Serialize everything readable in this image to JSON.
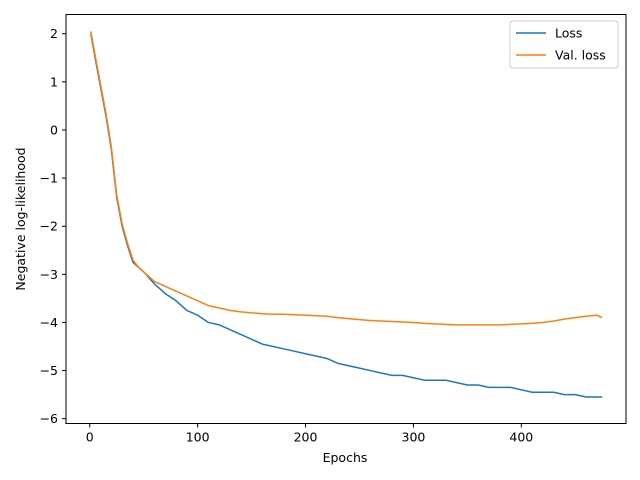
{
  "chart_data": {
    "type": "line",
    "title": "",
    "xlabel": "Epochs",
    "ylabel": "Negative log-likelihood",
    "xlim": [
      -22,
      497
    ],
    "ylim": [
      -6.1,
      2.4
    ],
    "xticks": [
      0,
      100,
      200,
      300,
      400
    ],
    "yticks": [
      2,
      1,
      0,
      -1,
      -2,
      -3,
      -4,
      -5,
      -6
    ],
    "xtick_labels": [
      "0",
      "100",
      "200",
      "300",
      "400"
    ],
    "ytick_labels": [
      "2",
      "1",
      "0",
      "−1",
      "−2",
      "−3",
      "−4",
      "−5",
      "−6"
    ],
    "grid": false,
    "legend_position": "top-right",
    "series": [
      {
        "name": "Loss",
        "color": "#1f77b4",
        "x": [
          1,
          5,
          10,
          15,
          20,
          25,
          30,
          35,
          40,
          45,
          50,
          60,
          70,
          80,
          90,
          100,
          110,
          120,
          130,
          140,
          150,
          160,
          170,
          180,
          190,
          200,
          210,
          220,
          230,
          240,
          250,
          260,
          270,
          280,
          290,
          300,
          310,
          320,
          330,
          340,
          350,
          360,
          370,
          380,
          390,
          400,
          410,
          420,
          430,
          440,
          450,
          460,
          470,
          475
        ],
        "y": [
          2.0,
          1.5,
          0.9,
          0.3,
          -0.4,
          -1.4,
          -2.0,
          -2.4,
          -2.75,
          -2.85,
          -2.95,
          -3.2,
          -3.4,
          -3.55,
          -3.75,
          -3.85,
          -4.0,
          -4.05,
          -4.15,
          -4.25,
          -4.35,
          -4.45,
          -4.5,
          -4.55,
          -4.6,
          -4.65,
          -4.7,
          -4.75,
          -4.85,
          -4.9,
          -4.95,
          -5.0,
          -5.05,
          -5.1,
          -5.1,
          -5.15,
          -5.2,
          -5.2,
          -5.2,
          -5.25,
          -5.3,
          -5.3,
          -5.35,
          -5.35,
          -5.35,
          -5.4,
          -5.45,
          -5.45,
          -5.45,
          -5.5,
          -5.5,
          -5.55,
          -5.55,
          -5.55
        ]
      },
      {
        "name": "Val. loss",
        "color": "#ff7f0e",
        "x": [
          1,
          5,
          10,
          15,
          20,
          25,
          30,
          35,
          40,
          45,
          50,
          60,
          70,
          80,
          90,
          100,
          110,
          120,
          130,
          140,
          150,
          160,
          170,
          180,
          190,
          200,
          210,
          220,
          230,
          240,
          250,
          260,
          270,
          280,
          290,
          300,
          310,
          320,
          330,
          340,
          350,
          360,
          370,
          380,
          390,
          400,
          410,
          420,
          430,
          440,
          450,
          460,
          470,
          475
        ],
        "y": [
          2.05,
          1.55,
          0.95,
          0.35,
          -0.35,
          -1.35,
          -1.95,
          -2.35,
          -2.7,
          -2.85,
          -2.95,
          -3.15,
          -3.25,
          -3.35,
          -3.45,
          -3.55,
          -3.65,
          -3.7,
          -3.75,
          -3.78,
          -3.8,
          -3.82,
          -3.83,
          -3.83,
          -3.84,
          -3.85,
          -3.86,
          -3.87,
          -3.9,
          -3.92,
          -3.94,
          -3.96,
          -3.97,
          -3.98,
          -3.99,
          -4.0,
          -4.02,
          -4.03,
          -4.04,
          -4.05,
          -4.05,
          -4.05,
          -4.05,
          -4.05,
          -4.04,
          -4.03,
          -4.02,
          -4.0,
          -3.97,
          -3.93,
          -3.9,
          -3.87,
          -3.85,
          -3.9
        ]
      }
    ]
  }
}
